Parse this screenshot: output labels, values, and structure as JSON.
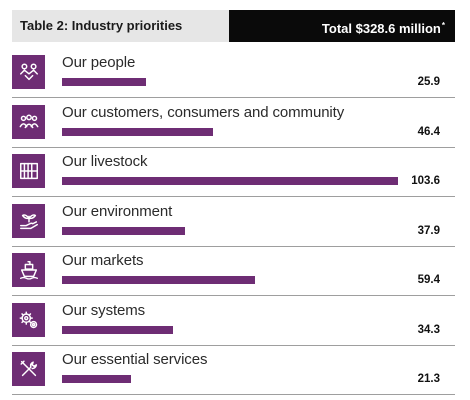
{
  "header": {
    "title": "Table 2: Industry priorities",
    "total": "Total $328.6 million",
    "total_mark": "*"
  },
  "colors": {
    "accent": "#6e2d74",
    "header_dark": "#0a0a0a",
    "header_light": "#e6e6e6"
  },
  "chart_data": {
    "type": "bar",
    "orientation": "horizontal",
    "title": "Table 2: Industry priorities",
    "subtitle": "Total $328.6 million",
    "categories": [
      "Our people",
      "Our customers, consumers and community",
      "Our livestock",
      "Our environment",
      "Our markets",
      "Our systems",
      "Our essential services"
    ],
    "values": [
      25.9,
      46.4,
      103.6,
      37.9,
      59.4,
      34.3,
      21.3
    ],
    "value_labels": [
      "25.9",
      "46.4",
      "103.6",
      "37.9",
      "59.4",
      "34.3",
      "21.3"
    ],
    "icons": [
      "people-icon",
      "community-icon",
      "livestock-icon",
      "environment-icon",
      "ship-icon",
      "gears-icon",
      "tools-icon"
    ],
    "xlim": [
      0,
      103.6
    ],
    "grid": false,
    "legend": "none"
  }
}
